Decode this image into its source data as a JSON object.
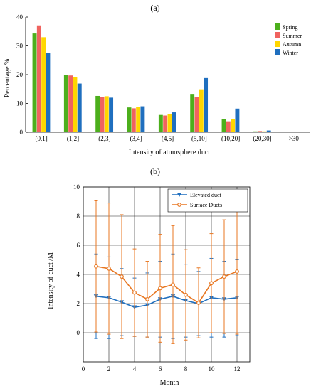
{
  "chart_data": [
    {
      "type": "bar",
      "title": "(a)",
      "xlabel": "Intensity of  atmosphere duct",
      "ylabel": "Percentage  %",
      "ylim": [
        0,
        40
      ],
      "yticks": [
        "0",
        "10",
        "20",
        "30",
        "40"
      ],
      "grid": false,
      "legend_position": "top-right",
      "categories": [
        "(0,1]",
        "(1,2]",
        "(2,3]",
        "(3,4]",
        "(4,5]",
        "(5,10]",
        "(10,20]",
        "(20,30]",
        ">30"
      ],
      "series": [
        {
          "name": "Spring",
          "color": "#4caf1c",
          "values": [
            34.3,
            19.8,
            12.6,
            8.6,
            6.0,
            13.3,
            4.5,
            0.3,
            0.1
          ]
        },
        {
          "name": "Summer",
          "color": "#f0635f",
          "values": [
            37.1,
            19.7,
            12.3,
            8.3,
            5.8,
            12.2,
            3.8,
            0.4,
            0.1
          ]
        },
        {
          "name": "Autumn",
          "color": "#ffd700",
          "values": [
            33.0,
            19.2,
            12.5,
            8.7,
            6.4,
            14.9,
            4.5,
            0.3,
            0.1
          ]
        },
        {
          "name": "Winter",
          "color": "#1f6fbf",
          "values": [
            27.5,
            16.9,
            12.0,
            9.0,
            6.9,
            18.8,
            8.2,
            0.6,
            0.1
          ]
        }
      ]
    },
    {
      "type": "line",
      "title": "(b)",
      "xlabel": "Month",
      "ylabel": "Intensity of duct /M",
      "xlim": [
        0,
        13
      ],
      "ylim": [
        -2,
        10
      ],
      "xticks": [
        "0",
        "2",
        "4",
        "6",
        "8",
        "10",
        "12"
      ],
      "yticks": [
        "0",
        "2",
        "4",
        "6",
        "8",
        "10"
      ],
      "grid": true,
      "legend_position": "top-right",
      "x": [
        1,
        2,
        3,
        4,
        5,
        6,
        7,
        8,
        9,
        10,
        11,
        12
      ],
      "series": [
        {
          "name": "Elevated duct",
          "color": "#1f6fbf",
          "marker": "triangle-down",
          "values": [
            2.5,
            2.4,
            2.1,
            1.75,
            1.9,
            2.3,
            2.5,
            2.2,
            2.0,
            2.4,
            2.3,
            2.4
          ],
          "error": [
            2.9,
            2.8,
            2.3,
            2.0,
            2.2,
            2.6,
            2.9,
            2.5,
            2.2,
            2.7,
            2.6,
            2.6
          ]
        },
        {
          "name": "Surface Ducts",
          "color": "#e87722",
          "marker": "circle",
          "values": [
            4.55,
            4.4,
            3.85,
            2.75,
            2.3,
            3.05,
            3.3,
            2.6,
            2.05,
            3.4,
            3.85,
            4.2
          ],
          "error": [
            4.5,
            4.5,
            4.25,
            3.0,
            2.6,
            3.7,
            4.05,
            3.1,
            2.4,
            3.4,
            3.9,
            4.3
          ]
        }
      ]
    }
  ]
}
